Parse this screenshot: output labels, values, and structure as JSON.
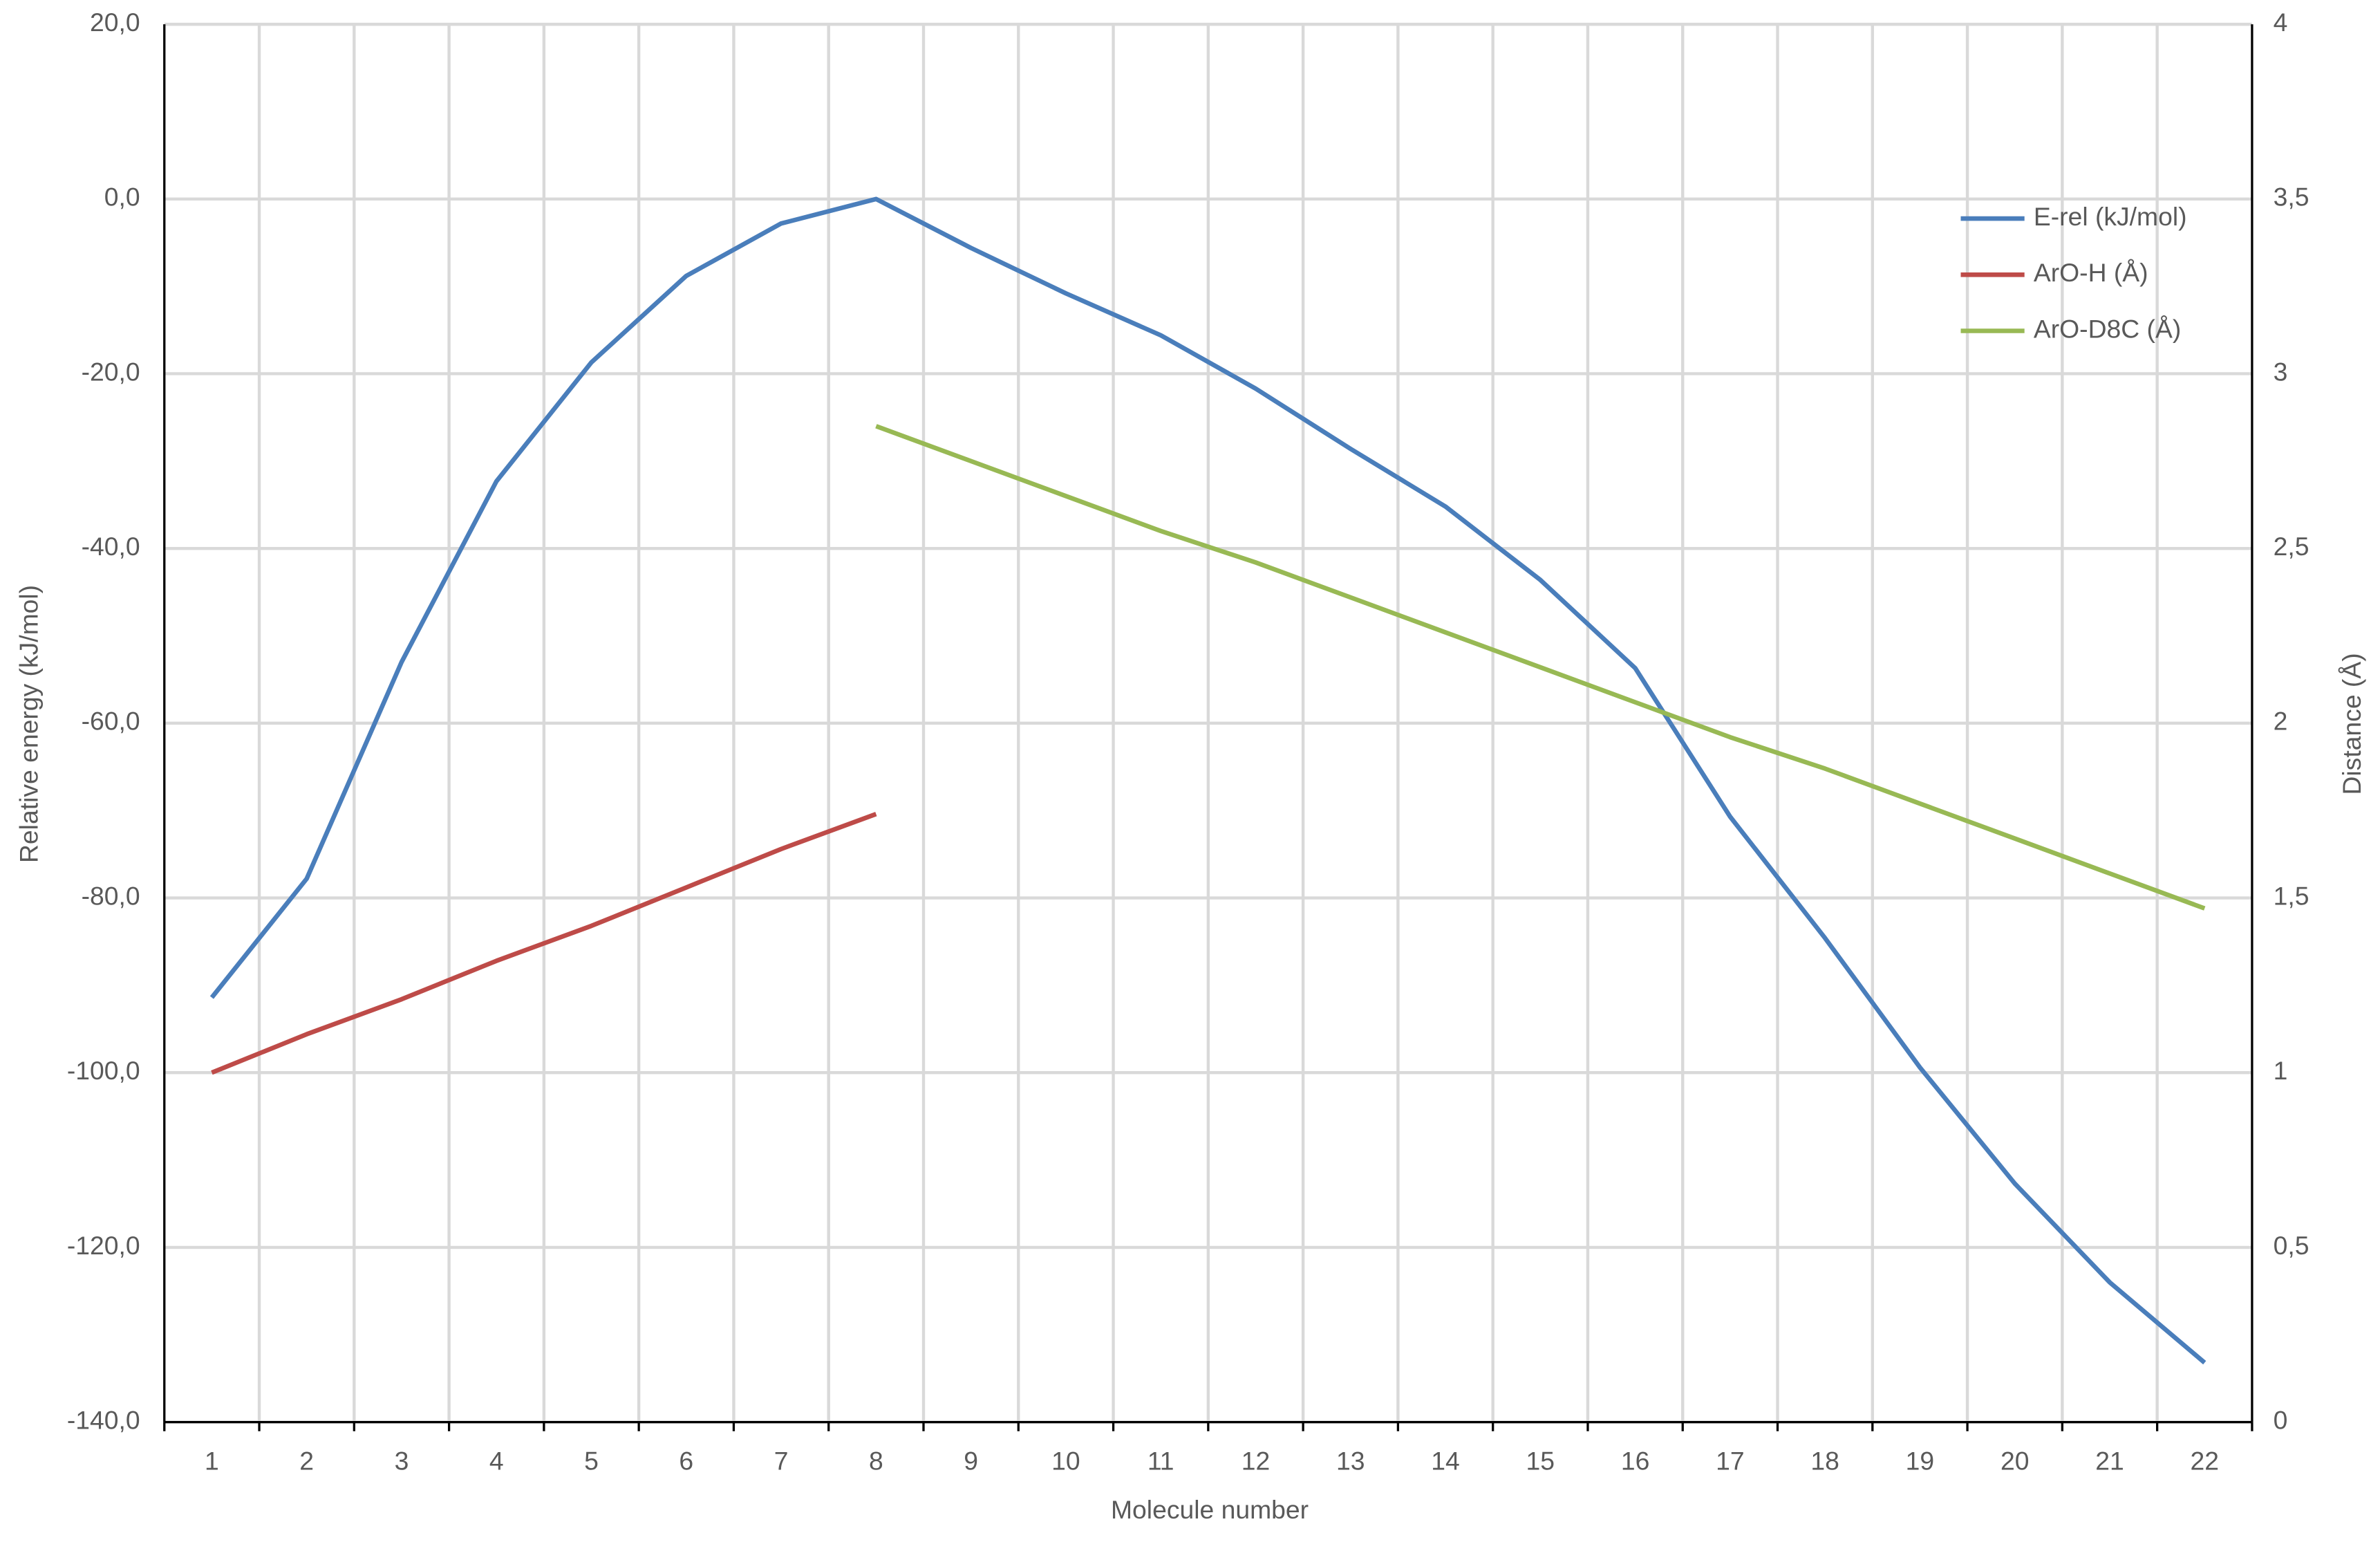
{
  "chart_data": {
    "type": "line",
    "x_label": "Molecule number",
    "y_label": "Relative energy (kJ/mol)",
    "y2_label": "Distance (Å)",
    "categories": [
      "1",
      "2",
      "3",
      "4",
      "5",
      "6",
      "7",
      "8",
      "9",
      "10",
      "11",
      "12",
      "13",
      "14",
      "15",
      "16",
      "17",
      "18",
      "19",
      "20",
      "21",
      "22"
    ],
    "series": [
      {
        "name": "E-rel (kJ/mol)",
        "color": "#4a7ebb",
        "values": [
          -91.4,
          -77.8,
          -53.0,
          -32.3,
          -18.7,
          -8.8,
          -2.8,
          0.0,
          -5.6,
          -10.8,
          -15.6,
          -21.7,
          -28.6,
          -35.2,
          -43.6,
          -53.7,
          -70.7,
          -84.6,
          -99.4,
          -112.7,
          -124.0,
          -133.2
        ]
      },
      {
        "name": "ArO-H (Å)",
        "color": "#be4b48",
        "axis": "y2",
        "values": [
          1.0,
          1.11,
          1.21,
          1.32,
          1.42,
          1.53,
          1.64,
          1.74,
          null,
          null,
          null,
          null,
          null,
          null,
          null,
          null,
          null,
          null,
          null,
          null,
          null,
          null
        ]
      },
      {
        "name": "ArO-D8C (Å)",
        "color": "#98b954",
        "axis": "y2",
        "values": [
          null,
          null,
          null,
          null,
          null,
          null,
          null,
          2.85,
          2.75,
          2.65,
          2.55,
          2.46,
          2.36,
          2.26,
          2.16,
          2.06,
          1.96,
          1.87,
          1.77,
          1.67,
          1.57,
          1.47
        ]
      }
    ],
    "ylim": [
      -140,
      20
    ],
    "yticks": [
      {
        "value": -140,
        "label": "-140,0"
      },
      {
        "value": -120,
        "label": "-120,0"
      },
      {
        "value": -100,
        "label": "-100,0"
      },
      {
        "value": -80,
        "label": "-80,0"
      },
      {
        "value": -60,
        "label": "-60,0"
      },
      {
        "value": -40,
        "label": "-40,0"
      },
      {
        "value": -20,
        "label": "-20,0"
      },
      {
        "value": 0,
        "label": "0,0"
      },
      {
        "value": 20,
        "label": "20,0"
      }
    ],
    "y2lim": [
      0,
      4
    ],
    "y2ticks": [
      0,
      {
        "value": 0.5,
        "label": "0,5"
      },
      1,
      {
        "value": 1.5,
        "label": "1,5"
      },
      2,
      {
        "value": 2.5,
        "label": "2,5"
      },
      3,
      {
        "value": 3.5,
        "label": "3,5"
      },
      4
    ],
    "grid": true,
    "legend": "upper-right"
  }
}
